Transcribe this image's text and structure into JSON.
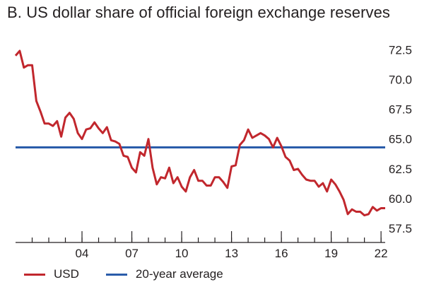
{
  "chart_data": {
    "type": "line",
    "title": "B. US dollar share of official foreign exchange reserves",
    "xlabel": "",
    "ylabel": "",
    "ylim": [
      56.5,
      74.0
    ],
    "xlim": [
      2000.0,
      2022.25
    ],
    "x_ticks": [
      {
        "value": 2004,
        "label": "04"
      },
      {
        "value": 2007,
        "label": "07"
      },
      {
        "value": 2010,
        "label": "10"
      },
      {
        "value": 2013,
        "label": "13"
      },
      {
        "value": 2016,
        "label": "16"
      },
      {
        "value": 2019,
        "label": "19"
      },
      {
        "value": 2022,
        "label": "22"
      }
    ],
    "y_ticks": [
      {
        "value": 57.5,
        "label": "57.5"
      },
      {
        "value": 60.0,
        "label": "60.0"
      },
      {
        "value": 62.5,
        "label": "62.5"
      },
      {
        "value": 65.0,
        "label": "65.0"
      },
      {
        "value": 67.5,
        "label": "67.5"
      },
      {
        "value": 70.0,
        "label": "70.0"
      },
      {
        "value": 72.5,
        "label": "72.5"
      }
    ],
    "minor_x_ticks": [
      2001,
      2002,
      2003,
      2004,
      2005,
      2006,
      2007,
      2008,
      2009,
      2010,
      2011,
      2012,
      2013,
      2014,
      2015,
      2016,
      2017,
      2018,
      2019,
      2020,
      2021,
      2022
    ],
    "grid": false,
    "legend_position": "bottom-left",
    "series": [
      {
        "name": "USD",
        "color": "#c1272d",
        "x": [
          2000.0,
          2000.25,
          2000.5,
          2000.75,
          2001.0,
          2001.25,
          2001.5,
          2001.75,
          2002.0,
          2002.25,
          2002.5,
          2002.75,
          2003.0,
          2003.25,
          2003.5,
          2003.75,
          2004.0,
          2004.25,
          2004.5,
          2004.75,
          2005.0,
          2005.25,
          2005.5,
          2005.75,
          2006.0,
          2006.25,
          2006.5,
          2006.75,
          2007.0,
          2007.25,
          2007.5,
          2007.75,
          2008.0,
          2008.25,
          2008.5,
          2008.75,
          2009.0,
          2009.25,
          2009.5,
          2009.75,
          2010.0,
          2010.25,
          2010.5,
          2010.75,
          2011.0,
          2011.25,
          2011.5,
          2011.75,
          2012.0,
          2012.25,
          2012.5,
          2012.75,
          2013.0,
          2013.25,
          2013.5,
          2013.75,
          2014.0,
          2014.25,
          2014.5,
          2014.75,
          2015.0,
          2015.25,
          2015.5,
          2015.75,
          2016.0,
          2016.25,
          2016.5,
          2016.75,
          2017.0,
          2017.25,
          2017.5,
          2017.75,
          2018.0,
          2018.25,
          2018.5,
          2018.75,
          2019.0,
          2019.25,
          2019.5,
          2019.75,
          2020.0,
          2020.25,
          2020.5,
          2020.75,
          2021.0,
          2021.25,
          2021.5,
          2021.75,
          2022.0,
          2022.25
        ],
        "values": [
          72.0,
          72.4,
          71.0,
          71.2,
          71.2,
          68.2,
          67.3,
          66.3,
          66.3,
          66.1,
          66.5,
          65.2,
          66.8,
          67.2,
          66.7,
          65.5,
          65.0,
          65.8,
          65.9,
          66.4,
          65.9,
          65.5,
          66.0,
          64.9,
          64.8,
          64.6,
          63.6,
          63.5,
          62.6,
          62.2,
          63.9,
          63.6,
          65.0,
          62.6,
          61.2,
          61.8,
          61.7,
          62.6,
          61.3,
          61.8,
          61.0,
          60.6,
          61.8,
          62.4,
          61.5,
          61.5,
          61.1,
          61.1,
          61.8,
          61.8,
          61.4,
          60.9,
          62.7,
          62.8,
          64.5,
          64.9,
          65.8,
          65.1,
          65.3,
          65.5,
          65.3,
          65.0,
          64.3,
          65.1,
          64.4,
          63.5,
          63.2,
          62.4,
          62.5,
          62.0,
          61.6,
          61.5,
          61.5,
          61.0,
          61.3,
          60.6,
          61.6,
          61.2,
          60.6,
          59.9,
          58.7,
          59.1,
          58.9,
          58.9,
          58.6,
          58.7,
          59.3,
          59.0,
          59.2,
          59.2
        ]
      },
      {
        "name": "20-year average",
        "color": "#2a5caa",
        "x": [
          2000.0,
          2022.25
        ],
        "values": [
          64.3,
          64.3
        ]
      }
    ]
  },
  "legend": {
    "items": [
      {
        "label": "USD",
        "color": "#c1272d"
      },
      {
        "label": "20-year average",
        "color": "#2a5caa"
      }
    ]
  }
}
